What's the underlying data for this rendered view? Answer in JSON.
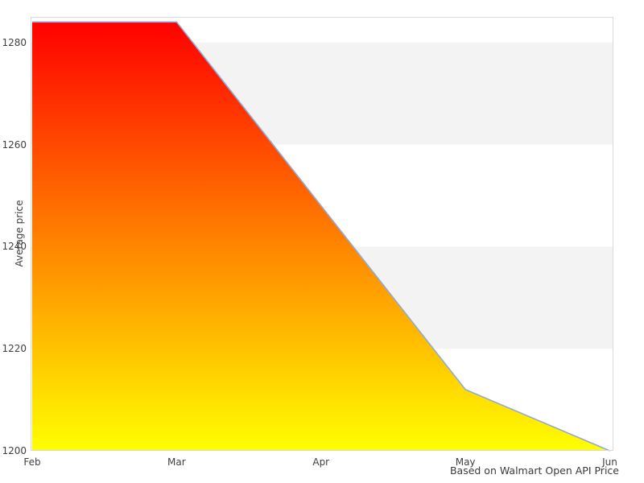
{
  "chart_data": {
    "type": "area",
    "title": "",
    "xlabel": "",
    "ylabel": "Average price",
    "caption": "Based on Walmart Open API Price",
    "categories": [
      "Feb",
      "Mar",
      "Apr",
      "May",
      "Jun"
    ],
    "values": [
      1284,
      1284,
      1248,
      1212,
      1200
    ],
    "ylim": [
      1200,
      1285
    ],
    "yticks": [
      1200,
      1220,
      1240,
      1260,
      1280
    ],
    "grid_bands": [
      [
        1260,
        1280
      ],
      [
        1220,
        1240
      ]
    ],
    "legend": "none",
    "colors": {
      "gradient_top": "#ff0000",
      "gradient_bottom": "#ffff00",
      "line": "#90aad8",
      "band": "#f3f3f3",
      "plot_border": "#d9d9d9",
      "text": "#404040",
      "background": "#ffffff"
    }
  }
}
